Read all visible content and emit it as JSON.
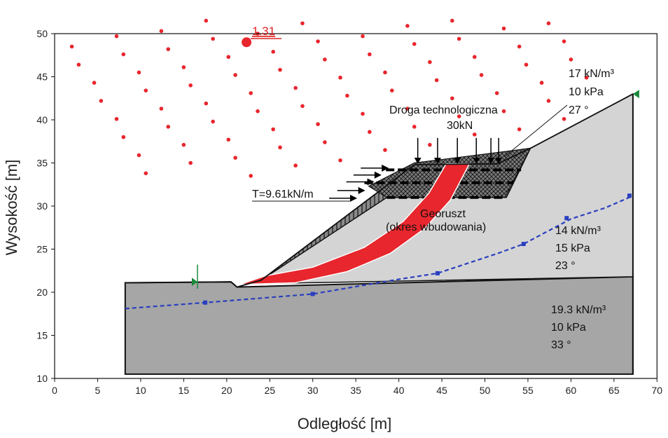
{
  "chart_data": {
    "type": "slope-stability-section",
    "xlabel": "Odległość [m]",
    "ylabel": "Wysokość [m]",
    "xlim": [
      0,
      70
    ],
    "ylim": [
      10,
      50
    ],
    "x_ticks": [
      "0",
      "5",
      "10",
      "15",
      "20",
      "25",
      "30",
      "35",
      "40",
      "45",
      "50",
      "55",
      "60",
      "65",
      "70"
    ],
    "y_ticks": [
      "10",
      "15",
      "20",
      "25",
      "30",
      "35",
      "40",
      "45",
      "50"
    ],
    "min_factor_of_safety": "1.31",
    "min_fs_center": [
      22.3,
      49.0
    ],
    "load_label": "Droga technologiczna",
    "load_value": "30kN",
    "reinforcement_force": "T=9.61kN/m",
    "reinforcement_label_1": "Georuszt",
    "reinforcement_label_2": "(okres wbudowania)",
    "materials": [
      {
        "name": "top",
        "unit_weight": "17 kN/m³",
        "cohesion": "10 kPa",
        "friction": "27 °"
      },
      {
        "name": "middle",
        "unit_weight": "14 kN/m³",
        "cohesion": "15 kPa",
        "friction": "23 °"
      },
      {
        "name": "bottom",
        "unit_weight": "19.3 kN/m³",
        "cohesion": "10 kPa",
        "friction": "33 °"
      }
    ],
    "surfaces": {
      "ground": [
        [
          8.2,
          21.1
        ],
        [
          20.5,
          21.2
        ],
        [
          21.2,
          20.6
        ],
        [
          24,
          21.4
        ],
        [
          41.8,
          34.8
        ],
        [
          51.5,
          34.9
        ],
        [
          55.3,
          36.7
        ],
        [
          67.2,
          43.0
        ]
      ],
      "base_boundary": [
        [
          8.2,
          21.1
        ],
        [
          20.5,
          21.2
        ],
        [
          21.2,
          20.6
        ],
        [
          67.2,
          21.8
        ]
      ],
      "model_bottom": 10.5,
      "model_left": 8.2,
      "model_right": 67.2,
      "phreatic": [
        [
          8.2,
          18.1
        ],
        [
          17.5,
          18.8
        ],
        [
          30,
          19.8
        ],
        [
          40,
          21.5
        ],
        [
          44.5,
          22.2
        ],
        [
          51.5,
          24.5
        ],
        [
          54.5,
          25.6
        ],
        [
          60,
          28.5
        ],
        [
          64,
          29.8
        ],
        [
          67,
          31.1
        ]
      ],
      "phreatic_markers": [
        [
          17.5,
          18.8
        ],
        [
          30,
          19.8
        ],
        [
          44.5,
          22.2
        ],
        [
          54.5,
          25.6
        ],
        [
          59.5,
          28.6
        ],
        [
          66.8,
          31.2
        ]
      ],
      "fill_wedge": [
        [
          24,
          21.4
        ],
        [
          41.8,
          34.8
        ],
        [
          55.3,
          36.7
        ],
        [
          52.5,
          31.0
        ],
        [
          38.6,
          31.0
        ]
      ],
      "geogrid_layers": [
        [
          38.6,
          31.0,
          52.3,
          31.0
        ],
        [
          36.0,
          32.7,
          53.3,
          32.7
        ],
        [
          38.5,
          34.2,
          54.2,
          34.2
        ]
      ],
      "slip_outer": [
        [
          21.5,
          20.9
        ],
        [
          28,
          21.1
        ],
        [
          34,
          22.4
        ],
        [
          39,
          24.5
        ],
        [
          43,
          27.4
        ],
        [
          46,
          30.7
        ],
        [
          48.2,
          34.9
        ]
      ],
      "slip_inner": [
        [
          45.5,
          34.9
        ],
        [
          43.5,
          31.5
        ],
        [
          40.5,
          28.2
        ],
        [
          36,
          25.2
        ],
        [
          30,
          22.9
        ],
        [
          24.5,
          21.9
        ],
        [
          21.5,
          20.9
        ]
      ],
      "axle_loads_x": [
        42.2,
        44.5,
        46.8,
        49.0,
        50.7,
        51.6
      ],
      "anchor_arrows_y": [
        30.9,
        31.8,
        32.8,
        33.6,
        34.4
      ],
      "markers": [
        [
          16.6,
          21.2
        ],
        [
          67.2,
          43.0
        ]
      ]
    }
  }
}
